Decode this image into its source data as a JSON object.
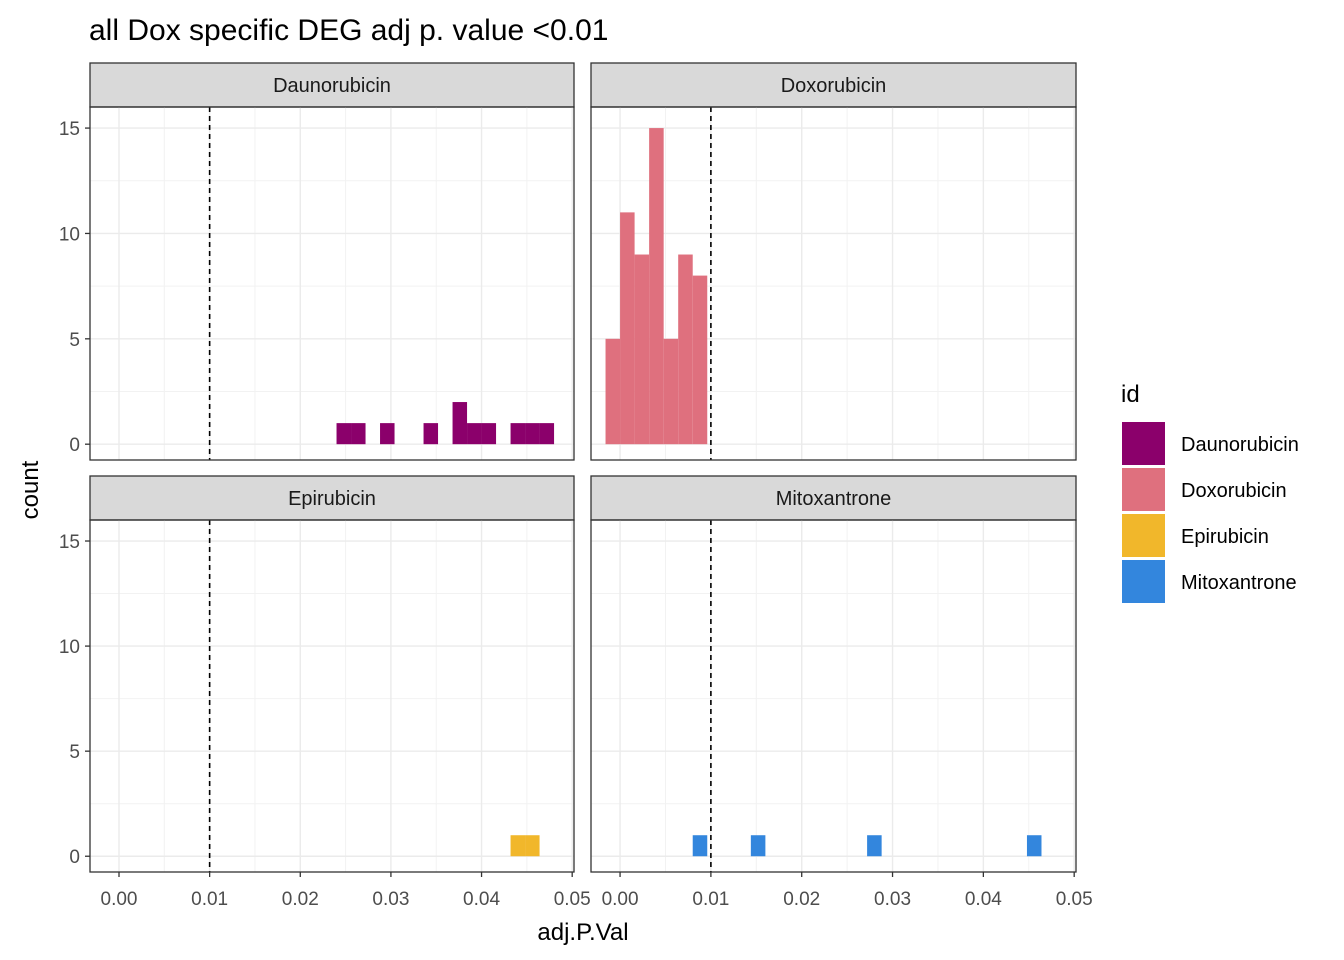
{
  "chart_data": {
    "type": "bar",
    "subtype": "faceted histogram",
    "title": "all Dox specific DEG adj p. value <0.01",
    "xlabel": "adj.P.Val",
    "ylabel": "count",
    "xlim": [
      -0.0032,
      0.0502
    ],
    "ylim": [
      -0.75,
      16
    ],
    "x_ticks": [
      0.0,
      0.01,
      0.02,
      0.03,
      0.04,
      0.05
    ],
    "x_tick_labels": [
      "0.00",
      "0.01",
      "0.02",
      "0.03",
      "0.04",
      "0.05"
    ],
    "y_ticks": [
      0,
      5,
      10,
      15
    ],
    "y_tick_labels": [
      "0",
      "5",
      "10",
      "15"
    ],
    "bin_width": 0.0016,
    "threshold_line": 0.01,
    "grid": true,
    "legend": {
      "title": "id",
      "position": "right",
      "entries": [
        "Daunorubicin",
        "Doxorubicin",
        "Epirubicin",
        "Mitoxantrone"
      ]
    },
    "facets": [
      {
        "name": "Daunorubicin",
        "color": "#8B006B",
        "bins": [
          {
            "x": 0.0248,
            "count": 1
          },
          {
            "x": 0.0264,
            "count": 1
          },
          {
            "x": 0.0296,
            "count": 1
          },
          {
            "x": 0.0344,
            "count": 1
          },
          {
            "x": 0.0376,
            "count": 2
          },
          {
            "x": 0.0392,
            "count": 1
          },
          {
            "x": 0.0408,
            "count": 1
          },
          {
            "x": 0.044,
            "count": 1
          },
          {
            "x": 0.0456,
            "count": 1
          },
          {
            "x": 0.0472,
            "count": 1
          }
        ]
      },
      {
        "name": "Doxorubicin",
        "color": "#DF707E",
        "bins": [
          {
            "x": -0.0008,
            "count": 5
          },
          {
            "x": 0.0008,
            "count": 11
          },
          {
            "x": 0.0024,
            "count": 9
          },
          {
            "x": 0.004,
            "count": 15
          },
          {
            "x": 0.0056,
            "count": 5
          },
          {
            "x": 0.0072,
            "count": 9
          },
          {
            "x": 0.0088,
            "count": 8
          }
        ]
      },
      {
        "name": "Epirubicin",
        "color": "#F1B72B",
        "bins": [
          {
            "x": 0.044,
            "count": 1
          },
          {
            "x": 0.0456,
            "count": 1
          }
        ]
      },
      {
        "name": "Mitoxantrone",
        "color": "#3386DD",
        "bins": [
          {
            "x": 0.0088,
            "count": 1
          },
          {
            "x": 0.0152,
            "count": 1
          },
          {
            "x": 0.028,
            "count": 1
          },
          {
            "x": 0.0456,
            "count": 1
          }
        ]
      }
    ]
  }
}
